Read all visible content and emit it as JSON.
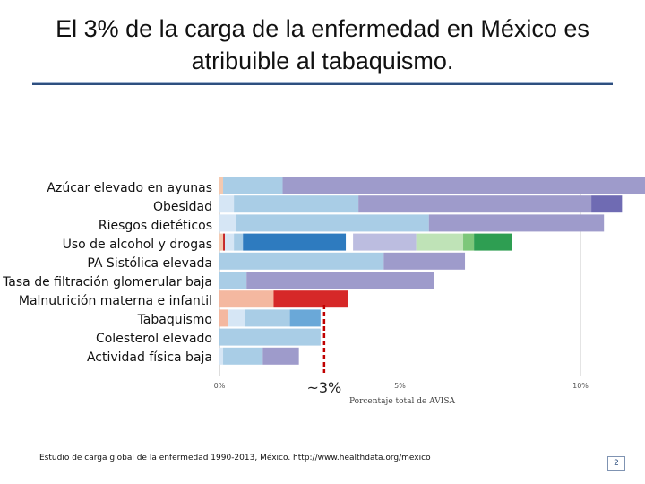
{
  "slide": {
    "title_line1": "El 3% de la carga de la enfermedad en México es",
    "title_line2": "atribuible al tabaquismo.",
    "source": "Estudio de carga global de la enfermedad 1990-2013, México. http://www.healthdata.org/mexico",
    "page_number": "2"
  },
  "chart_data": {
    "type": "bar",
    "orientation": "horizontal-stacked",
    "xlabel": "Porcentaje total de AVISA",
    "xlim": [
      0,
      11.8
    ],
    "xticks": [
      {
        "value": 0,
        "label": "0%"
      },
      {
        "value": 5,
        "label": "5%"
      },
      {
        "value": 10,
        "label": "10%"
      }
    ],
    "annotation": {
      "label": "~3%",
      "value": 2.9,
      "color": "#c00000"
    },
    "categories": [
      "Azúcar elevado en ayunas",
      "Obesidad",
      "Riesgos dietéticos",
      "Uso de alcohol y drogas",
      "PA Sistólica elevada",
      "Tasa de filtración glomerular baja",
      "Malnutrición materna e infantil",
      "Tabaquismo",
      "Colesterol elevado",
      "Actividad física baja"
    ],
    "segments": [
      [
        {
          "start": 0.0,
          "end": 0.1,
          "color": "#f4c9b0"
        },
        {
          "start": 0.1,
          "end": 1.75,
          "color": "#a9cde6"
        },
        {
          "start": 1.75,
          "end": 11.8,
          "color": "#9e9bcb"
        }
      ],
      [
        {
          "start": 0.0,
          "end": 0.4,
          "color": "#d6e6f5"
        },
        {
          "start": 0.4,
          "end": 3.85,
          "color": "#a9cde6"
        },
        {
          "start": 3.85,
          "end": 10.3,
          "color": "#9e9bcb"
        },
        {
          "start": 10.3,
          "end": 11.15,
          "color": "#6f6bb3"
        }
      ],
      [
        {
          "start": 0.0,
          "end": 0.45,
          "color": "#d6e6f5"
        },
        {
          "start": 0.45,
          "end": 5.8,
          "color": "#a9cde6"
        },
        {
          "start": 5.8,
          "end": 10.65,
          "color": "#9e9bcb"
        }
      ],
      [
        {
          "start": 0.0,
          "end": 0.1,
          "color": "#f4c9b0"
        },
        {
          "start": 0.1,
          "end": 0.15,
          "color": "#c62828"
        },
        {
          "start": 0.15,
          "end": 0.4,
          "color": "#d6e6f5"
        },
        {
          "start": 0.4,
          "end": 0.65,
          "color": "#a9cde6"
        },
        {
          "start": 0.65,
          "end": 3.5,
          "color": "#2e7bbf"
        },
        {
          "start": 3.7,
          "end": 5.45,
          "color": "#bcbde0"
        },
        {
          "start": 5.45,
          "end": 6.75,
          "color": "#bfe3b7"
        },
        {
          "start": 6.75,
          "end": 7.05,
          "color": "#7dc77a"
        },
        {
          "start": 7.05,
          "end": 8.1,
          "color": "#2e9e52"
        }
      ],
      [
        {
          "start": 0.0,
          "end": 4.55,
          "color": "#a9cde6"
        },
        {
          "start": 4.55,
          "end": 6.8,
          "color": "#9e9bcb"
        }
      ],
      [
        {
          "start": 0.0,
          "end": 0.75,
          "color": "#a9cde6"
        },
        {
          "start": 0.75,
          "end": 5.95,
          "color": "#9e9bcb"
        }
      ],
      [
        {
          "start": 0.0,
          "end": 1.5,
          "color": "#f4b8a0"
        },
        {
          "start": 1.5,
          "end": 3.55,
          "color": "#d62828"
        }
      ],
      [
        {
          "start": 0.0,
          "end": 0.25,
          "color": "#f4b8a0"
        },
        {
          "start": 0.25,
          "end": 0.7,
          "color": "#d6e6f5"
        },
        {
          "start": 0.7,
          "end": 1.95,
          "color": "#a9cde6"
        },
        {
          "start": 1.95,
          "end": 2.8,
          "color": "#6aa8d8"
        }
      ],
      [
        {
          "start": 0.0,
          "end": 2.8,
          "color": "#a9cde6"
        }
      ],
      [
        {
          "start": 0.0,
          "end": 0.1,
          "color": "#d6e6f5"
        },
        {
          "start": 0.1,
          "end": 1.2,
          "color": "#a9cde6"
        },
        {
          "start": 1.2,
          "end": 2.2,
          "color": "#9e9bcb"
        }
      ]
    ]
  }
}
